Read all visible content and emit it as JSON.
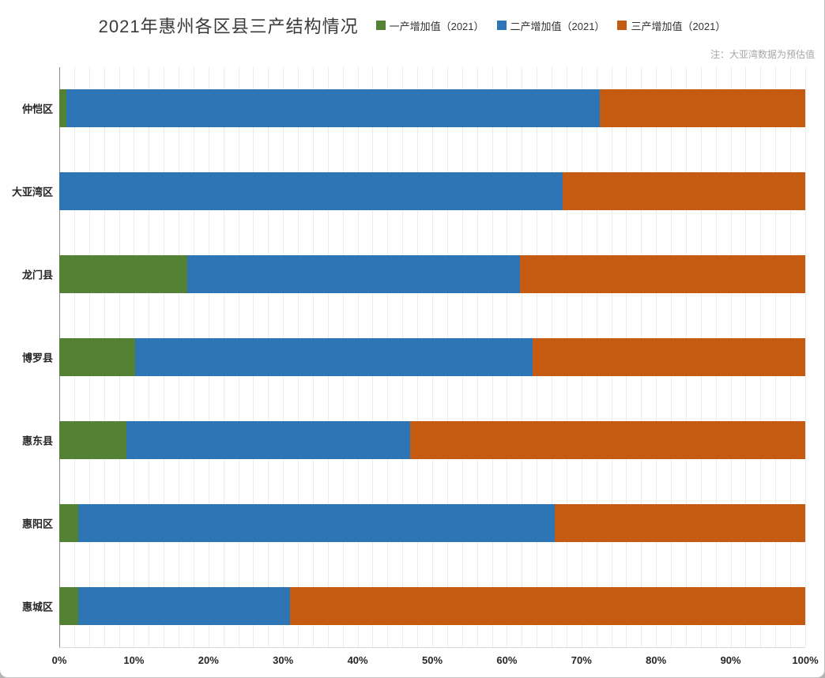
{
  "title": "2021年惠州各区县三产结构情况",
  "note": "注：大亚湾数据为预估值",
  "chart_data": {
    "type": "bar",
    "orientation": "horizontal",
    "stacked": true,
    "title": "2021年惠州各区县三产结构情况",
    "categories": [
      "仲恺区",
      "大亚湾区",
      "龙门县",
      "博罗县",
      "惠东县",
      "惠阳区",
      "惠城区"
    ],
    "series": [
      {
        "name": "一产增加值（2021）",
        "color": "#548235",
        "values": [
          1.0,
          0,
          17.2,
          10.2,
          9.0,
          2.5,
          2.5
        ]
      },
      {
        "name": "二产增加值（2021）",
        "color": "#2e75b6",
        "values": [
          71.5,
          67.5,
          44.6,
          53.3,
          38.0,
          63.9,
          28.4
        ]
      },
      {
        "name": "三产增加值（2021）",
        "color": "#c55a11",
        "values": [
          27.5,
          32.5,
          38.2,
          36.5,
          53.0,
          33.6,
          69.1
        ]
      }
    ],
    "xlabel": "",
    "ylabel": "",
    "xlim": [
      0,
      100
    ],
    "x_ticks": [
      "0%",
      "10%",
      "20%",
      "30%",
      "40%",
      "50%",
      "60%",
      "70%",
      "80%",
      "90%",
      "100%"
    ],
    "grid": true,
    "grid_minor_step_pct": 2,
    "legend_position": "top"
  }
}
